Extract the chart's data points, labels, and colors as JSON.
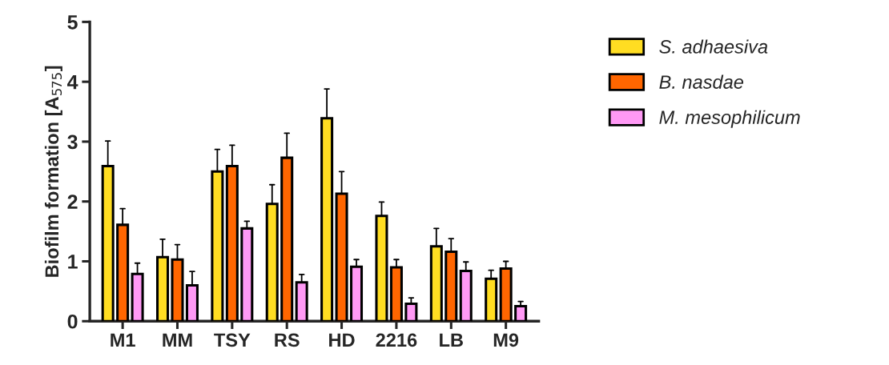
{
  "chart_data": {
    "type": "bar",
    "ylabel": "Biofilm formation [A$_{575}$]",
    "categories": [
      "M1",
      "MM",
      "TSY",
      "RS",
      "HD",
      "2216",
      "LB",
      "M9"
    ],
    "series": [
      {
        "name": "S. adhaesiva",
        "color": "#ffdd22",
        "values": [
          2.59,
          1.07,
          2.5,
          1.96,
          3.39,
          1.76,
          1.25,
          0.71
        ],
        "errors": [
          [
            2.59,
            3.01
          ],
          [
            1.07,
            1.37
          ],
          [
            2.5,
            2.87
          ],
          [
            1.96,
            2.28
          ],
          [
            3.39,
            3.88
          ],
          [
            1.76,
            1.99
          ],
          [
            1.25,
            1.55
          ],
          [
            0.71,
            0.85
          ]
        ]
      },
      {
        "name": "B. nasdae",
        "color": "#ff6600",
        "values": [
          1.61,
          1.03,
          2.59,
          2.73,
          2.13,
          0.9,
          1.16,
          0.88
        ],
        "errors": [
          [
            1.61,
            1.88
          ],
          [
            1.03,
            1.28
          ],
          [
            2.59,
            2.94
          ],
          [
            2.73,
            3.14
          ],
          [
            2.13,
            2.5
          ],
          [
            0.9,
            1.03
          ],
          [
            1.16,
            1.38
          ],
          [
            0.88,
            1.0
          ]
        ]
      },
      {
        "name": "M. mesophilicum",
        "color": "#ff99f5",
        "values": [
          0.79,
          0.6,
          1.55,
          0.65,
          0.91,
          0.29,
          0.84,
          0.25
        ],
        "errors": [
          [
            0.79,
            0.97
          ],
          [
            0.6,
            0.83
          ],
          [
            1.55,
            1.67
          ],
          [
            0.65,
            0.78
          ],
          [
            0.91,
            1.03
          ],
          [
            0.29,
            0.39
          ],
          [
            0.84,
            0.99
          ],
          [
            0.25,
            0.33
          ]
        ]
      }
    ],
    "ylim": [
      0,
      5
    ],
    "yticks": [
      0,
      1,
      2,
      3,
      4,
      5
    ],
    "grid": false,
    "legend": "top right"
  }
}
